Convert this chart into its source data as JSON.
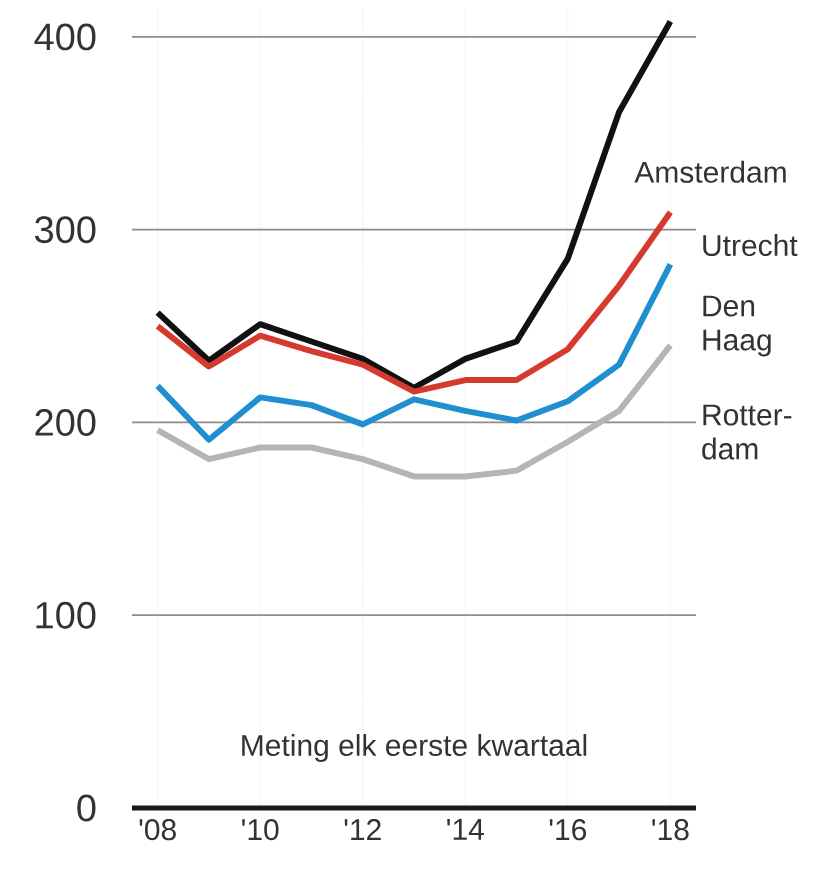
{
  "chart_data": {
    "type": "line",
    "x": [
      2008,
      2009,
      2010,
      2011,
      2012,
      2013,
      2014,
      2015,
      2016,
      2017,
      2018
    ],
    "series": [
      {
        "name": "Amsterdam",
        "color": "#111111",
        "values": [
          257,
          232,
          251,
          242,
          233,
          218,
          233,
          242,
          285,
          361,
          408
        ]
      },
      {
        "name": "Utrecht",
        "color": "#d63a2f",
        "values": [
          250,
          229,
          245,
          237,
          230,
          216,
          222,
          222,
          238,
          271,
          309
        ]
      },
      {
        "name": "Den Haag",
        "color": "#1f8fcf",
        "values": [
          219,
          191,
          213,
          209,
          199,
          212,
          206,
          201,
          211,
          230,
          282
        ]
      },
      {
        "name": "Rotter-dam",
        "color": "#b5b5b5",
        "values": [
          196,
          181,
          187,
          187,
          181,
          172,
          172,
          175,
          190,
          206,
          240
        ]
      }
    ],
    "xlim": [
      2007.5,
      2018.5
    ],
    "ylim": [
      0,
      415
    ],
    "xticks": [
      {
        "value": 2008,
        "label": "'08"
      },
      {
        "value": 2010,
        "label": "'10"
      },
      {
        "value": 2012,
        "label": "'12"
      },
      {
        "value": 2014,
        "label": "'14"
      },
      {
        "value": 2016,
        "label": "'16"
      },
      {
        "value": 2018,
        "label": "'18"
      }
    ],
    "yticks": [
      0,
      100,
      200,
      300,
      400
    ],
    "grid": true,
    "line_style": "solid",
    "marker": "none",
    "annotations": [
      "Meting elk eerste kwartaal"
    ]
  }
}
